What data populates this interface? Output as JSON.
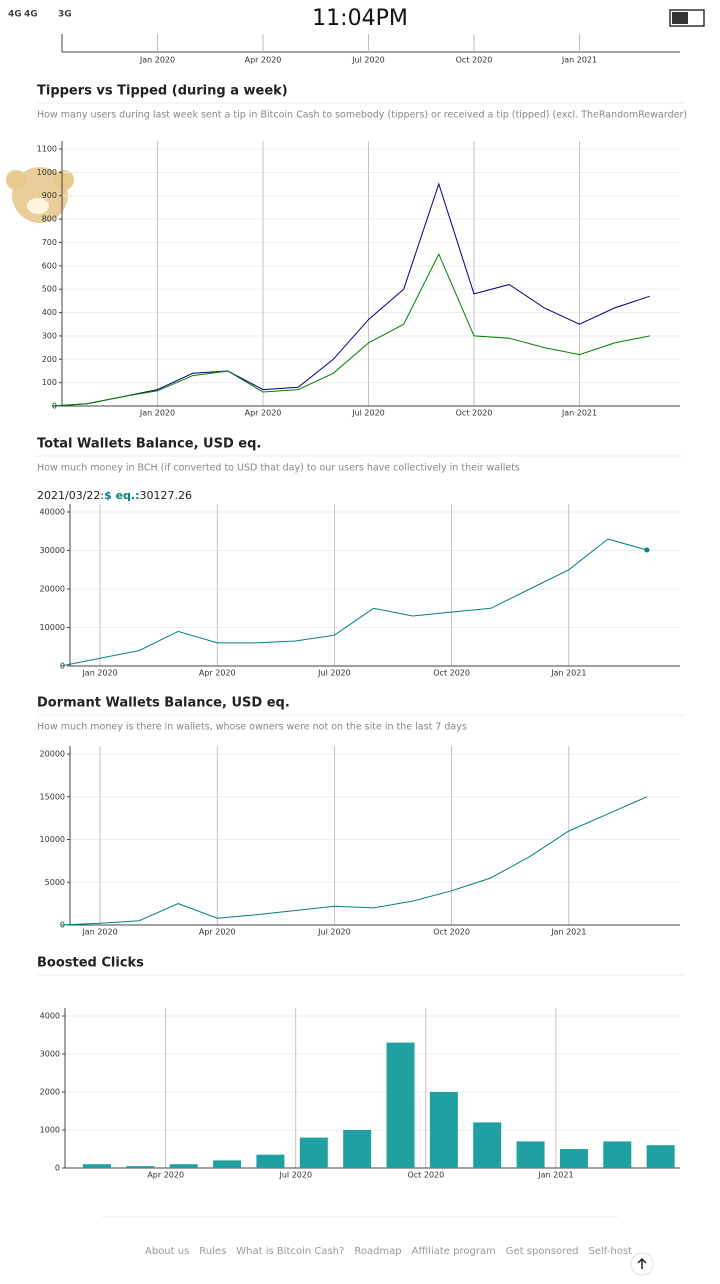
{
  "status_bar": {
    "network_1": "4G",
    "network_2": "4G",
    "network_3": "3G",
    "time": "11:04PM"
  },
  "partial_chart": {
    "xticks": [
      {
        "value": "2020-01",
        "label": "Jan 2020"
      },
      {
        "value": "2020-04",
        "label": "Apr 2020"
      },
      {
        "value": "2020-07",
        "label": "Jul 2020"
      },
      {
        "value": "2020-10",
        "label": "Oct 2020"
      },
      {
        "value": "2021-01",
        "label": "Jan 2021"
      }
    ],
    "xlim": [
      "2019-10",
      "2021-04"
    ]
  },
  "chart_data": [
    {
      "type": "line",
      "title": "Tippers vs Tipped (during a week)",
      "subtitle": "How many users during last week sent a tip in Bitcoin Cash to somebody (tippers) or received a tip (tipped) (excl. TheRandomRewarder)",
      "x": [
        "2019-10",
        "2019-11",
        "2019-12",
        "2020-01",
        "2020-02",
        "2020-03",
        "2020-04",
        "2020-05",
        "2020-06",
        "2020-07",
        "2020-08",
        "2020-09",
        "2020-10",
        "2020-11",
        "2020-12",
        "2021-01",
        "2021-02",
        "2021-03"
      ],
      "series": [
        {
          "color": "#000080",
          "values": [
            0,
            10,
            40,
            70,
            140,
            150,
            70,
            80,
            200,
            370,
            500,
            950,
            480,
            520,
            420,
            350,
            420,
            470
          ]
        },
        {
          "color": "#008000",
          "values": [
            0,
            10,
            40,
            65,
            130,
            150,
            60,
            70,
            140,
            270,
            350,
            650,
            300,
            290,
            250,
            220,
            270,
            300
          ]
        }
      ],
      "xlim": [
        "2019-10",
        "2021-04"
      ],
      "xticks": [
        {
          "value": "2020-01",
          "label": "Jan 2020"
        },
        {
          "value": "2020-04",
          "label": "Apr 2020"
        },
        {
          "value": "2020-07",
          "label": "Jul 2020"
        },
        {
          "value": "2020-10",
          "label": "Oct 2020"
        },
        {
          "value": "2021-01",
          "label": "Jan 2021"
        }
      ],
      "ylim": [
        0,
        1100
      ],
      "yticks": [
        0,
        100,
        200,
        300,
        400,
        500,
        600,
        700,
        800,
        900,
        1000,
        1100
      ],
      "grid": true
    },
    {
      "type": "line",
      "title": "Total Wallets Balance, USD eq.",
      "subtitle": "How much money in BCH (if converted to USD that day) to our users have collectively in their wallets",
      "tooltip": {
        "date": "2021/03/22:",
        "label": "$ eq.:"
      },
      "x": [
        "2019-12",
        "2020-01",
        "2020-02",
        "2020-03",
        "2020-04",
        "2020-05",
        "2020-06",
        "2020-07",
        "2020-08",
        "2020-09",
        "2020-10",
        "2020-11",
        "2020-12",
        "2021-01",
        "2021-02",
        "2021-03"
      ],
      "series": [
        {
          "color": "#008080",
          "values": [
            0,
            2000,
            4000,
            9000,
            6000,
            6000,
            6500,
            8000,
            15000,
            13000,
            14000,
            15000,
            20000,
            25000,
            33000,
            30127.26
          ]
        }
      ],
      "xlim": [
        "2019-12",
        "2021-04"
      ],
      "xticks": [
        {
          "value": "2020-01",
          "label": "Jan 2020"
        },
        {
          "value": "2020-04",
          "label": "Apr 2020"
        },
        {
          "value": "2020-07",
          "label": "Jul 2020"
        },
        {
          "value": "2020-10",
          "label": "Oct 2020"
        },
        {
          "value": "2021-01",
          "label": "Jan 2021"
        }
      ],
      "ylim": [
        0,
        40000
      ],
      "yticks": [
        0,
        10000,
        20000,
        30000,
        40000
      ],
      "grid": true
    },
    {
      "type": "line",
      "title": "Dormant Wallets Balance, USD eq.",
      "subtitle": "How much money is there in wallets, whose owners were not on the site in the last 7 days",
      "x": [
        "2019-12",
        "2020-01",
        "2020-02",
        "2020-03",
        "2020-04",
        "2020-05",
        "2020-06",
        "2020-07",
        "2020-08",
        "2020-09",
        "2020-10",
        "2020-11",
        "2020-12",
        "2021-01",
        "2021-02",
        "2021-03"
      ],
      "series": [
        {
          "color": "#008080",
          "values": [
            0,
            200,
            500,
            2500,
            800,
            1200,
            1700,
            2200,
            2000,
            2800,
            4000,
            5500,
            8000,
            11000,
            13000,
            15000
          ]
        }
      ],
      "xlim": [
        "2019-12",
        "2021-04"
      ],
      "xticks": [
        {
          "value": "2020-01",
          "label": "Jan 2020"
        },
        {
          "value": "2020-04",
          "label": "Apr 2020"
        },
        {
          "value": "2020-07",
          "label": "Jul 2020"
        },
        {
          "value": "2020-10",
          "label": "Oct 2020"
        },
        {
          "value": "2021-01",
          "label": "Jan 2021"
        }
      ],
      "ylim": [
        0,
        20000
      ],
      "yticks": [
        0,
        5000,
        10000,
        15000,
        20000
      ],
      "grid": true
    },
    {
      "type": "bar",
      "title": "Boosted Clicks",
      "x": [
        "2020-02",
        "2020-03",
        "2020-04",
        "2020-05",
        "2020-06",
        "2020-07",
        "2020-08",
        "2020-09",
        "2020-10",
        "2020-11",
        "2020-12",
        "2021-01",
        "2021-02",
        "2021-03"
      ],
      "values": [
        100,
        50,
        100,
        200,
        350,
        800,
        1000,
        3300,
        2000,
        1200,
        700,
        500,
        700,
        600
      ],
      "color": "#20a0a0",
      "xlim": [
        "2020-02",
        "2021-04"
      ],
      "xticks": [
        {
          "value": "2020-04",
          "label": "Apr 2020"
        },
        {
          "value": "2020-07",
          "label": "Jul 2020"
        },
        {
          "value": "2020-10",
          "label": "Oct 2020"
        },
        {
          "value": "2021-01",
          "label": "Jan 2021"
        }
      ],
      "ylim": [
        0,
        4000
      ],
      "yticks": [
        0,
        1000,
        2000,
        3000,
        4000
      ],
      "grid": true
    }
  ],
  "footer": {
    "links": [
      "About us",
      "Rules",
      "What is Bitcoin Cash?",
      "Roadmap",
      "Affiliate program",
      "Get sponsored",
      "Self-host"
    ]
  }
}
